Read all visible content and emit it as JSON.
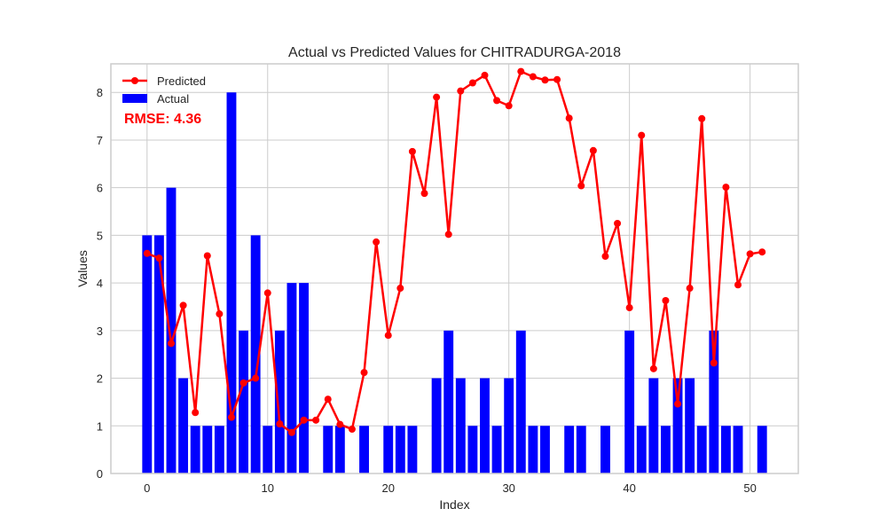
{
  "chart_data": {
    "type": "bar",
    "title": "Actual vs Predicted Values for CHITRADURGA-2018",
    "xlabel": "Index",
    "ylabel": "Values",
    "xlim": [
      -3,
      54
    ],
    "ylim": [
      0,
      8.6
    ],
    "xticks": [
      0,
      10,
      20,
      30,
      40,
      50
    ],
    "yticks": [
      0,
      1,
      2,
      3,
      4,
      5,
      6,
      7,
      8
    ],
    "grid": true,
    "legend_position": "top-left",
    "x": [
      0,
      1,
      2,
      3,
      4,
      5,
      6,
      7,
      8,
      9,
      10,
      11,
      12,
      13,
      14,
      15,
      16,
      17,
      18,
      19,
      20,
      21,
      22,
      23,
      24,
      25,
      26,
      27,
      28,
      29,
      30,
      31,
      32,
      33,
      34,
      35,
      36,
      37,
      38,
      39,
      40,
      41,
      42,
      43,
      44,
      45,
      46,
      47,
      48,
      49,
      50,
      51
    ],
    "series": [
      {
        "name": "Actual",
        "type": "bar",
        "color": "#0000ff",
        "values": [
          5,
          5,
          6,
          2,
          1,
          1,
          1,
          8,
          3,
          5,
          1,
          3,
          4,
          4,
          0,
          1,
          1,
          0,
          1,
          0,
          1,
          1,
          1,
          0,
          2,
          3,
          2,
          1,
          2,
          1,
          2,
          3,
          1,
          1,
          0,
          1,
          1,
          0,
          1,
          0,
          3,
          1,
          2,
          1,
          2,
          2,
          1,
          3,
          1,
          1,
          0,
          1
        ]
      },
      {
        "name": "Predicted",
        "type": "line",
        "color": "#ff0000",
        "values": [
          4.62,
          4.52,
          2.73,
          3.53,
          1.28,
          4.57,
          3.35,
          1.18,
          1.9,
          2.0,
          3.79,
          1.04,
          0.86,
          1.12,
          1.12,
          1.56,
          1.03,
          0.93,
          2.12,
          4.86,
          2.9,
          3.89,
          6.76,
          5.88,
          7.9,
          5.02,
          8.03,
          8.2,
          8.36,
          7.83,
          7.72,
          8.44,
          8.33,
          8.26,
          8.27,
          7.46,
          6.04,
          6.78,
          4.56,
          5.25,
          3.48,
          7.1,
          2.2,
          3.63,
          1.46,
          3.89,
          7.45,
          2.32,
          6.01,
          3.96,
          4.61,
          4.65
        ]
      }
    ],
    "annotation": {
      "text": "RMSE: 4.36",
      "color": "#ff0000"
    }
  }
}
